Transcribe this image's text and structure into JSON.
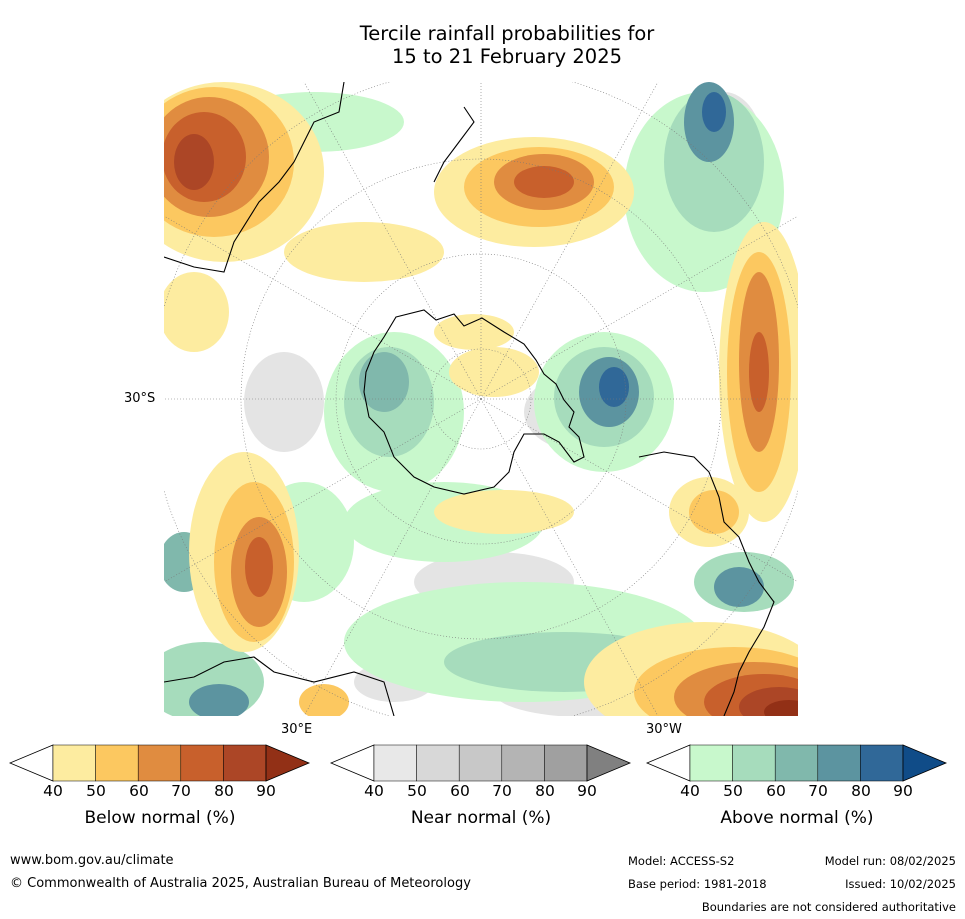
{
  "title": {
    "line1": "Tercile rainfall probabilities for",
    "line2": "15 to 21 February 2025"
  },
  "map": {
    "projection_labels": {
      "lat_left": "30°S",
      "lon_bottom_left": "30°E",
      "lon_bottom_right": "30°W"
    }
  },
  "colorbars": [
    {
      "label": "Below normal (%)",
      "ticks": [
        "40",
        "50",
        "60",
        "70",
        "80",
        "90"
      ],
      "colors": [
        "#fdeca0",
        "#fcc860",
        "#e08c40",
        "#c8602c",
        "#ac4626",
        "#923016"
      ]
    },
    {
      "label": "Near normal (%)",
      "ticks": [
        "40",
        "50",
        "60",
        "70",
        "80",
        "90"
      ],
      "colors": [
        "#e8e8e8",
        "#d8d8d8",
        "#c8c8c8",
        "#b4b4b4",
        "#a0a0a0",
        "#808080"
      ]
    },
    {
      "label": "Above normal (%)",
      "ticks": [
        "40",
        "50",
        "60",
        "70",
        "80",
        "90"
      ],
      "colors": [
        "#c8f8cc",
        "#a6dcbc",
        "#80b8ac",
        "#5c94a0",
        "#306898",
        "#104c88"
      ]
    }
  ],
  "footer": {
    "website": "www.bom.gov.au/climate",
    "copyright": "© Commonwealth of Australia 2025, Australian Bureau of Meteorology",
    "model": "Model: ACCESS-S2",
    "model_run": "Model run: 08/02/2025",
    "base_period": "Base period: 1981-2018",
    "issued": "Issued: 10/02/2025",
    "disclaimer": "Boundaries are not considered authoritative"
  }
}
